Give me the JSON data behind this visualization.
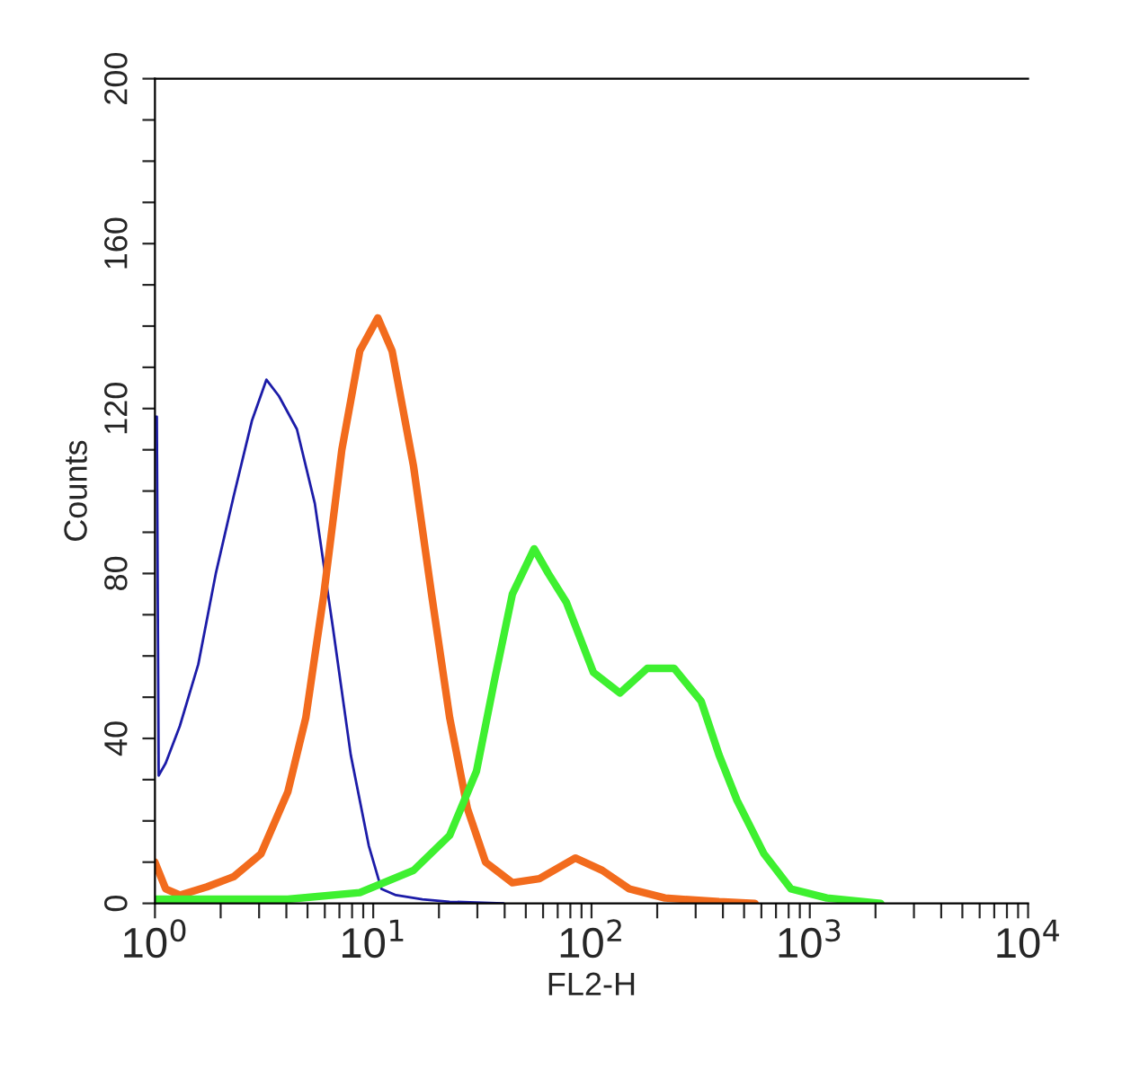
{
  "chart_data": {
    "type": "line",
    "xlabel": "FL2-H",
    "ylabel": "Counts",
    "log": "x",
    "xlim": [
      1,
      10000
    ],
    "xticks": [
      {
        "value": 1,
        "label": "10$^{0}$"
      },
      {
        "value": 2,
        "label": null
      },
      {
        "value": 3,
        "label": null
      },
      {
        "value": 4,
        "label": null
      },
      {
        "value": 5,
        "label": null
      },
      {
        "value": 6,
        "label": null
      },
      {
        "value": 7,
        "label": null
      },
      {
        "value": 8,
        "label": null
      },
      {
        "value": 9,
        "label": null
      },
      {
        "value": 10,
        "label": "10$^{1}$"
      },
      {
        "value": 20,
        "label": null
      },
      {
        "value": 30,
        "label": null
      },
      {
        "value": 40,
        "label": null
      },
      {
        "value": 50,
        "label": null
      },
      {
        "value": 60,
        "label": null
      },
      {
        "value": 70,
        "label": null
      },
      {
        "value": 80,
        "label": null
      },
      {
        "value": 90,
        "label": null
      },
      {
        "value": 100,
        "label": "10$^{2}$"
      },
      {
        "value": 200,
        "label": null
      },
      {
        "value": 300,
        "label": null
      },
      {
        "value": 400,
        "label": null
      },
      {
        "value": 500,
        "label": null
      },
      {
        "value": 600,
        "label": null
      },
      {
        "value": 700,
        "label": null
      },
      {
        "value": 800,
        "label": null
      },
      {
        "value": 900,
        "label": null
      },
      {
        "value": 1000,
        "label": "10$^{3}$"
      },
      {
        "value": 2000,
        "label": null
      },
      {
        "value": 3000,
        "label": null
      },
      {
        "value": 4000,
        "label": null
      },
      {
        "value": 5000,
        "label": null
      },
      {
        "value": 6000,
        "label": null
      },
      {
        "value": 7000,
        "label": null
      },
      {
        "value": 8000,
        "label": null
      },
      {
        "value": 9000,
        "label": null
      },
      {
        "value": 10000,
        "label": "10$^{4}$"
      }
    ],
    "ylim": [
      0,
      200
    ],
    "yticks": [
      0,
      {
        "value": 10,
        "label": null
      },
      {
        "value": 20,
        "label": null
      },
      {
        "value": 30,
        "label": null
      },
      40,
      {
        "value": 50,
        "label": null
      },
      {
        "value": 60,
        "label": null
      },
      {
        "value": 70,
        "label": null
      },
      80,
      {
        "value": 90,
        "label": null
      },
      {
        "value": 100,
        "label": null
      },
      {
        "value": 110,
        "label": null
      },
      120,
      {
        "value": 130,
        "label": null
      },
      {
        "value": 140,
        "label": null
      },
      {
        "value": 150,
        "label": null
      },
      160,
      {
        "value": 170,
        "label": null
      },
      {
        "value": 180,
        "label": null
      },
      {
        "value": 190,
        "label": null
      },
      200
    ],
    "grid": false,
    "legend": false,
    "series": [
      {
        "color": "#1c1ca8",
        "x": [
          1,
          1.02,
          1.04,
          1.12,
          1.3,
          1.58,
          1.9,
          2.3,
          2.78,
          3.24,
          3.7,
          4.47,
          5.4,
          6.53,
          7.89,
          9.54,
          10.9,
          12.7,
          16.8,
          22.4,
          39.5
        ],
        "values": [
          118,
          118,
          31,
          34,
          43,
          58,
          80,
          99,
          117,
          127,
          123,
          115,
          97,
          67,
          36,
          14,
          3.5,
          2,
          1,
          0.4,
          0
        ]
      },
      {
        "color": "#f26b1d",
        "x": [
          1,
          1.12,
          1.3,
          1.73,
          2.3,
          3.06,
          4.06,
          4.91,
          5.94,
          7.18,
          8.68,
          10.5,
          12.2,
          15.3,
          18.5,
          22.4,
          27.0,
          32.7,
          43.4,
          57.7,
          84.3,
          112,
          149,
          217,
          384,
          561
        ],
        "values": [
          10,
          3.5,
          2,
          4,
          6.5,
          12,
          27,
          45,
          75,
          110,
          134,
          142,
          134,
          106,
          75,
          45,
          23,
          10,
          5,
          6,
          11,
          8,
          3.5,
          1.3,
          0.4,
          0
        ]
      },
      {
        "color": "#3ef030",
        "x": [
          1,
          1.9,
          4.06,
          8.68,
          15.3,
          22.4,
          29.7,
          35.9,
          43.4,
          54.6,
          63.4,
          76.7,
          102,
          135,
          180,
          239,
          318,
          384,
          464,
          617,
          820,
          1197,
          2114
        ],
        "values": [
          1,
          1,
          1,
          2.6,
          8,
          16.5,
          32,
          54,
          75,
          86,
          80,
          73,
          56,
          51,
          57,
          57,
          49,
          36,
          25,
          12,
          3.5,
          1.3,
          0
        ]
      }
    ]
  }
}
